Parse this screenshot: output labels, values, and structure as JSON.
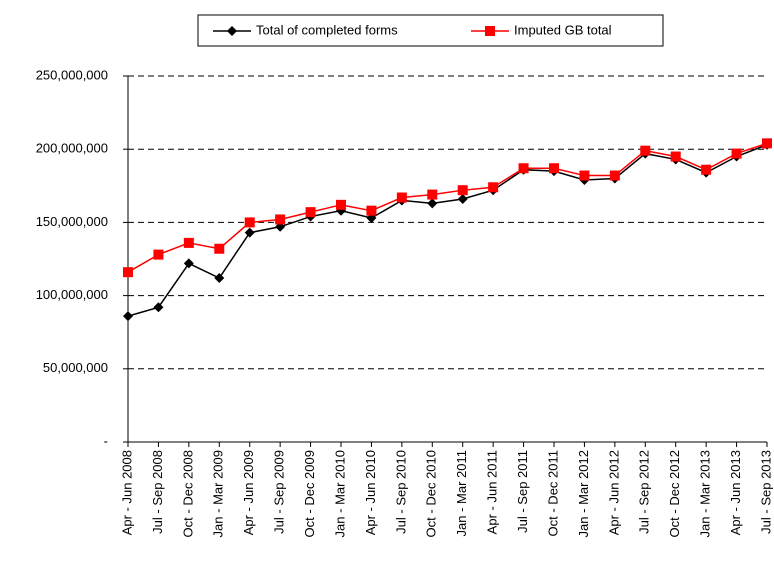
{
  "chart_data": {
    "type": "line",
    "categories": [
      "Apr - Jun 2008",
      "Jul - Sep 2008",
      "Oct - Dec 2008",
      "Jan - Mar 2009",
      "Apr - Jun 2009",
      "Jul - Sep 2009",
      "Oct - Dec 2009",
      "Jan - Mar 2010",
      "Apr - Jun 2010",
      "Jul - Sep 2010",
      "Oct - Dec 2010",
      "Jan - Mar 2011",
      "Apr - Jun 2011",
      "Jul - Sep 2011",
      "Oct - Dec 2011",
      "Jan - Mar 2012",
      "Apr - Jun 2012",
      "Jul - Sep 2012",
      "Oct - Dec 2012",
      "Jan - Mar 2013",
      "Apr - Jun 2013",
      "Jul - Sep 2013"
    ],
    "series": [
      {
        "name": "Total of completed forms",
        "color": "#000000",
        "marker": "diamond",
        "values": [
          86000000,
          92000000,
          122000000,
          112000000,
          143000000,
          147000000,
          154000000,
          158000000,
          153000000,
          165000000,
          163000000,
          166000000,
          172000000,
          186000000,
          185000000,
          179000000,
          180000000,
          197000000,
          193000000,
          184000000,
          195000000,
          203000000
        ]
      },
      {
        "name": "Imputed GB total",
        "color": "#ff0000",
        "marker": "square",
        "values": [
          116000000,
          128000000,
          136000000,
          132000000,
          150000000,
          152000000,
          157000000,
          162000000,
          158000000,
          167000000,
          169000000,
          172000000,
          174000000,
          187000000,
          187000000,
          182000000,
          182000000,
          199000000,
          195000000,
          186000000,
          197000000,
          204000000
        ]
      }
    ],
    "ylim": [
      0,
      250000000
    ],
    "yticks": [
      {
        "value": 0,
        "label": "-"
      },
      {
        "value": 50000000,
        "label": "50,000,000"
      },
      {
        "value": 100000000,
        "label": "100,000,000"
      },
      {
        "value": 150000000,
        "label": "150,000,000"
      },
      {
        "value": 200000000,
        "label": "200,000,000"
      },
      {
        "value": 250000000,
        "label": "250,000,000"
      }
    ],
    "grid": true,
    "legend": "top"
  }
}
